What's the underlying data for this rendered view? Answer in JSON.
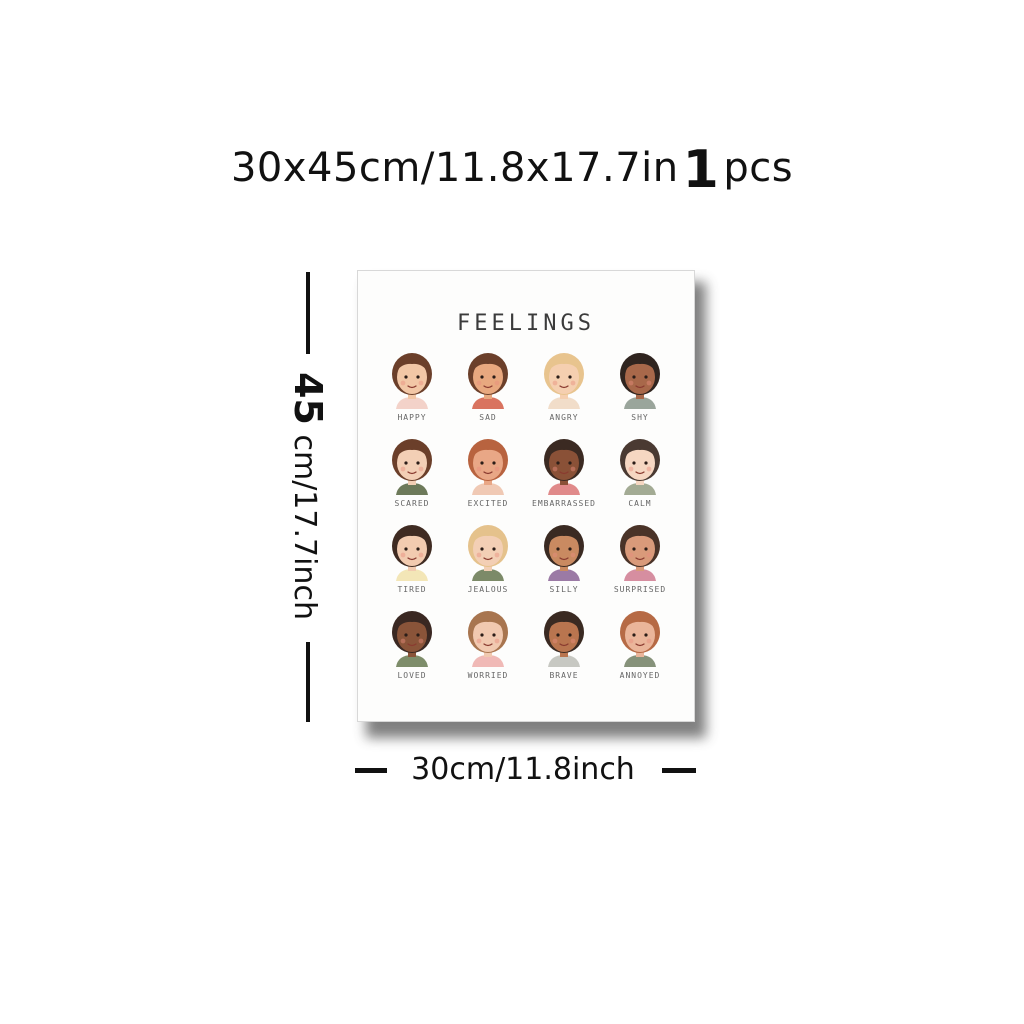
{
  "headline": {
    "size_text": "30x45cm/11.8x17.7in",
    "count": "1",
    "unit": "pcs"
  },
  "height_label": {
    "number": "45",
    "rest": "cm/17.7inch"
  },
  "width_label": "30cm/11.8inch",
  "poster": {
    "title": "FEELINGS",
    "emotions": [
      {
        "label": "HAPPY",
        "skin": "#f2c7a6",
        "hair": "#6b3f2a",
        "shirt": "#f3d2c9"
      },
      {
        "label": "SAD",
        "skin": "#e8a87f",
        "hair": "#6b3f2a",
        "shirt": "#d9735f"
      },
      {
        "label": "ANGRY",
        "skin": "#f5cfb0",
        "hair": "#e8c48e",
        "shirt": "#f1ddc9"
      },
      {
        "label": "SHY",
        "skin": "#a8684a",
        "hair": "#2f241f",
        "shirt": "#9aa59b"
      },
      {
        "label": "SCARED",
        "skin": "#f3cfb5",
        "hair": "#6b3f2a",
        "shirt": "#6d7a5a"
      },
      {
        "label": "EXCITED",
        "skin": "#e9a786",
        "hair": "#b8633f",
        "shirt": "#f0c9b4"
      },
      {
        "label": "EMBARRASSED",
        "skin": "#8a5137",
        "hair": "#3b2a22",
        "shirt": "#e08a8a"
      },
      {
        "label": "CALM",
        "skin": "#f6d7c2",
        "hair": "#4a3a32",
        "shirt": "#a3ab94"
      },
      {
        "label": "TIRED",
        "skin": "#f2cbb0",
        "hair": "#3f2b22",
        "shirt": "#f3e6b7"
      },
      {
        "label": "JEALOUS",
        "skin": "#f3cfb5",
        "hair": "#e5c28c",
        "shirt": "#7c8a68"
      },
      {
        "label": "SILLY",
        "skin": "#c98a61",
        "hair": "#3a2a22",
        "shirt": "#9b7aa5"
      },
      {
        "label": "SURPRISED",
        "skin": "#d99a7a",
        "hair": "#4a3328",
        "shirt": "#d68ea0"
      },
      {
        "label": "LOVED",
        "skin": "#8a5439",
        "hair": "#3a2822",
        "shirt": "#7e8d6a"
      },
      {
        "label": "WORRIED",
        "skin": "#f1c9b0",
        "hair": "#a8754f",
        "shirt": "#f0b9b6"
      },
      {
        "label": "BRAVE",
        "skin": "#b9754f",
        "hair": "#3a2a22",
        "shirt": "#c7c8c2"
      },
      {
        "label": "ANNOYED",
        "skin": "#eab59a",
        "hair": "#b66a45",
        "shirt": "#86927a"
      }
    ]
  }
}
